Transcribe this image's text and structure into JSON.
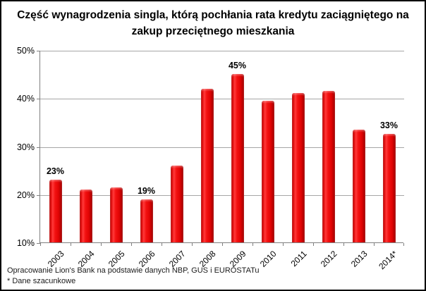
{
  "title": "Część wynagrodzenia singla, którą pochłania rata kredytu zaciągniętego na zakup przeciętnego mieszkania",
  "footer": {
    "source": "Opracowanie Lion's Bank na podstawie danych NBP, GUS i EUROSTATu",
    "note": "* Dane szacunkowe"
  },
  "chart_data": {
    "type": "bar",
    "title": "Część wynagrodzenia singla, którą pochłania rata kredytu zaciągniętego na zakup przeciętnego mieszkania",
    "categories": [
      "2003",
      "2004",
      "2005",
      "2006",
      "2007",
      "2008",
      "2009",
      "2010",
      "2011",
      "2012",
      "2013",
      "2014*"
    ],
    "values": [
      23,
      21,
      21.5,
      19,
      26,
      42,
      45,
      39.5,
      41,
      41.5,
      33.5,
      32.5
    ],
    "data_labels": [
      "23%",
      "",
      "",
      "19%",
      "",
      "",
      "45%",
      "",
      "",
      "",
      "",
      "33%"
    ],
    "xlabel": "",
    "ylabel": "",
    "ylim": [
      10,
      50
    ],
    "ytick_values": [
      10,
      20,
      30,
      40,
      50
    ],
    "ytick_labels": [
      "10%",
      "20%",
      "30%",
      "40%",
      "50%"
    ],
    "grid": true,
    "legend": null,
    "bar_color": "#e60000",
    "gridline_color": "#a6a6a6",
    "axis_color": "#808080",
    "annotations": "* Dane szacunkowe (2014 value is an estimate)"
  }
}
